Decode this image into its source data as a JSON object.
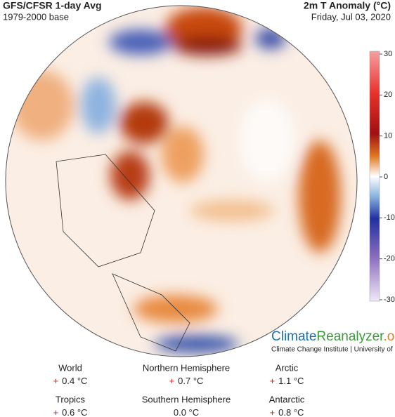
{
  "header": {
    "title": "GFS/CFSR 1-day Avg",
    "subtitle": "1979-2000 base",
    "variable": "2m T Anomaly (°C)",
    "date": "Friday, Jul 03, 2020"
  },
  "colorbar": {
    "range": [
      -30,
      30
    ],
    "ticks": [
      30,
      20,
      10,
      0,
      -10,
      -20,
      -30
    ]
  },
  "brand": {
    "parts": [
      "Climate",
      "Reanalyzer",
      ".org"
    ],
    "credit": "Climate Change Institute | University of Maine"
  },
  "stats": [
    {
      "label": "World",
      "sign": "+",
      "value": "0.4 °C"
    },
    {
      "label": "Northern Hemisphere",
      "sign": "+",
      "value": "0.7 °C"
    },
    {
      "label": "Arctic",
      "sign": "+",
      "value": "1.1 °C"
    },
    {
      "label": "Tropics",
      "sign": "+",
      "value": "0.6 °C"
    },
    {
      "label": "Southern Hemisphere",
      "value": "0.0 °C"
    },
    {
      "label": "Antarctic",
      "sign": "+",
      "value": "0.8 °C"
    }
  ]
}
